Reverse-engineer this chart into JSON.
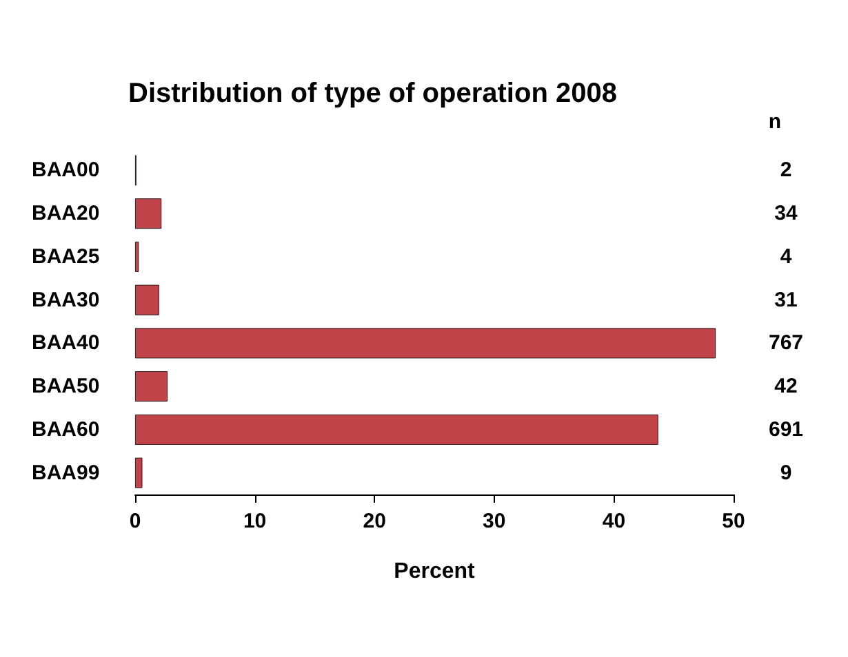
{
  "chart_data": {
    "type": "bar",
    "orientation": "horizontal",
    "title": "Distribution of type of operation 2008",
    "xlabel": "Percent",
    "categories": [
      "BAA00",
      "BAA20",
      "BAA25",
      "BAA30",
      "BAA40",
      "BAA50",
      "BAA60",
      "BAA99"
    ],
    "values": [
      0.1,
      2.2,
      0.3,
      2.0,
      48.5,
      2.7,
      43.7,
      0.6
    ],
    "annotations": [
      "n",
      "2",
      "34",
      "4",
      "31",
      "767",
      "42",
      "691",
      "9"
    ],
    "color": "#c0444a",
    "xlim": [
      0,
      50
    ],
    "xticks": [
      0,
      10,
      20,
      30,
      40,
      50
    ],
    "grid": false
  }
}
